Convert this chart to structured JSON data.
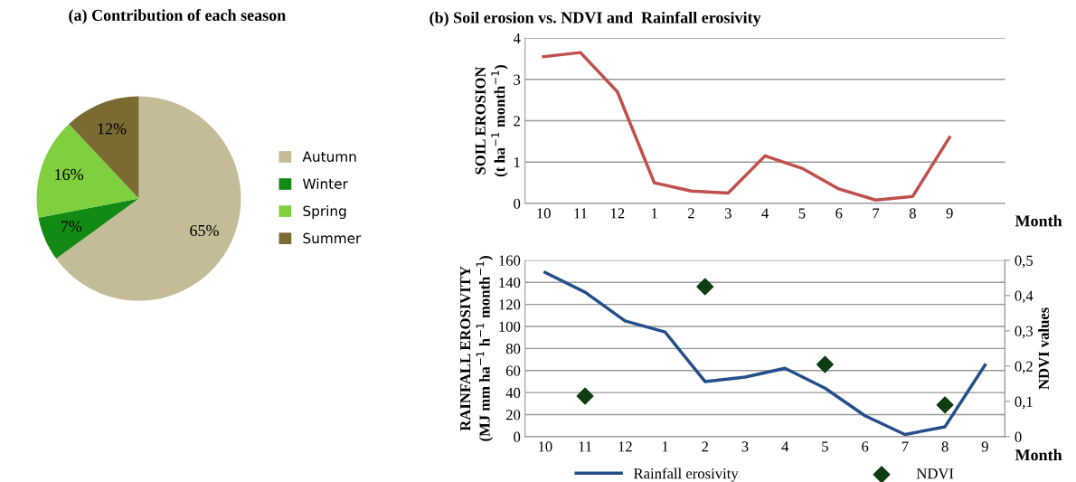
{
  "chart_data": [
    {
      "type": "pie",
      "title": "(a) Contribution of each season",
      "categories": [
        "Autumn",
        "Winter",
        "Spring",
        "Summer"
      ],
      "values": [
        65,
        7,
        16,
        12
      ],
      "colors": [
        "#c4bc96",
        "#138a13",
        "#7fcf3f",
        "#7a6b32"
      ],
      "value_labels": [
        "65%",
        "7%",
        "16%",
        "12%"
      ],
      "legend": "right"
    },
    {
      "type": "line",
      "title": "(b) Soil erosion vs. NDVI and  Rainfall erosivity",
      "xlabel": "Month",
      "ylabel": "SOIL EROSION\n(t ha$^{−1}$ month$^{−1}$)",
      "categories": [
        "10",
        "11",
        "12",
        "1",
        "2",
        "3",
        "4",
        "5",
        "6",
        "7",
        "8",
        "9",
        null
      ],
      "series": [
        {
          "color": "#c0504d",
          "values": [
            3.55,
            3.65,
            2.7,
            0.5,
            0.3,
            0.25,
            1.15,
            0.85,
            0.35,
            0.08,
            0.17,
            1.6,
            null
          ]
        }
      ],
      "ylim": [
        0,
        4
      ],
      "yticks": [
        0,
        1,
        2,
        3,
        4
      ],
      "grid": "y",
      "marker": "none"
    },
    {
      "type": "line",
      "xlabel": "Month",
      "ylabel": "RAINFALL EROSIVITY\n(MJ mm ha$^{−1}$ h$^{−1}$ month$^{−1}$)",
      "y2label": "NDVI values",
      "categories": [
        "10",
        "11",
        "12",
        "1",
        "2",
        "3",
        "4",
        "5",
        "6",
        "7",
        "8",
        "9"
      ],
      "series": [
        {
          "name": "Rainfall erosivity",
          "color": "#254f8c",
          "marker": "none",
          "values": [
            149,
            131,
            105,
            95,
            50,
            54,
            62,
            44,
            19,
            2,
            9,
            65
          ]
        },
        {
          "name": "NDVI",
          "type": "scatter",
          "color": "#0e3d12",
          "marker": "diamond",
          "axis": "y2",
          "values": [
            null,
            0.115,
            null,
            null,
            0.425,
            null,
            null,
            0.205,
            null,
            null,
            0.09,
            null
          ]
        }
      ],
      "ylim": [
        0,
        160
      ],
      "yticks": [
        0,
        20,
        40,
        60,
        80,
        100,
        120,
        140,
        160
      ],
      "y2lim": [
        0,
        0.5
      ],
      "y2ticks": [
        0,
        {
          "value": 0.1,
          "label": "0,1"
        },
        {
          "value": 0.2,
          "label": "0,2"
        },
        {
          "value": 0.3,
          "label": "0,3"
        },
        {
          "value": 0.4,
          "label": "0,4"
        },
        {
          "value": 0.5,
          "label": "0,5"
        }
      ],
      "grid": "y",
      "legend": "bottom"
    }
  ]
}
